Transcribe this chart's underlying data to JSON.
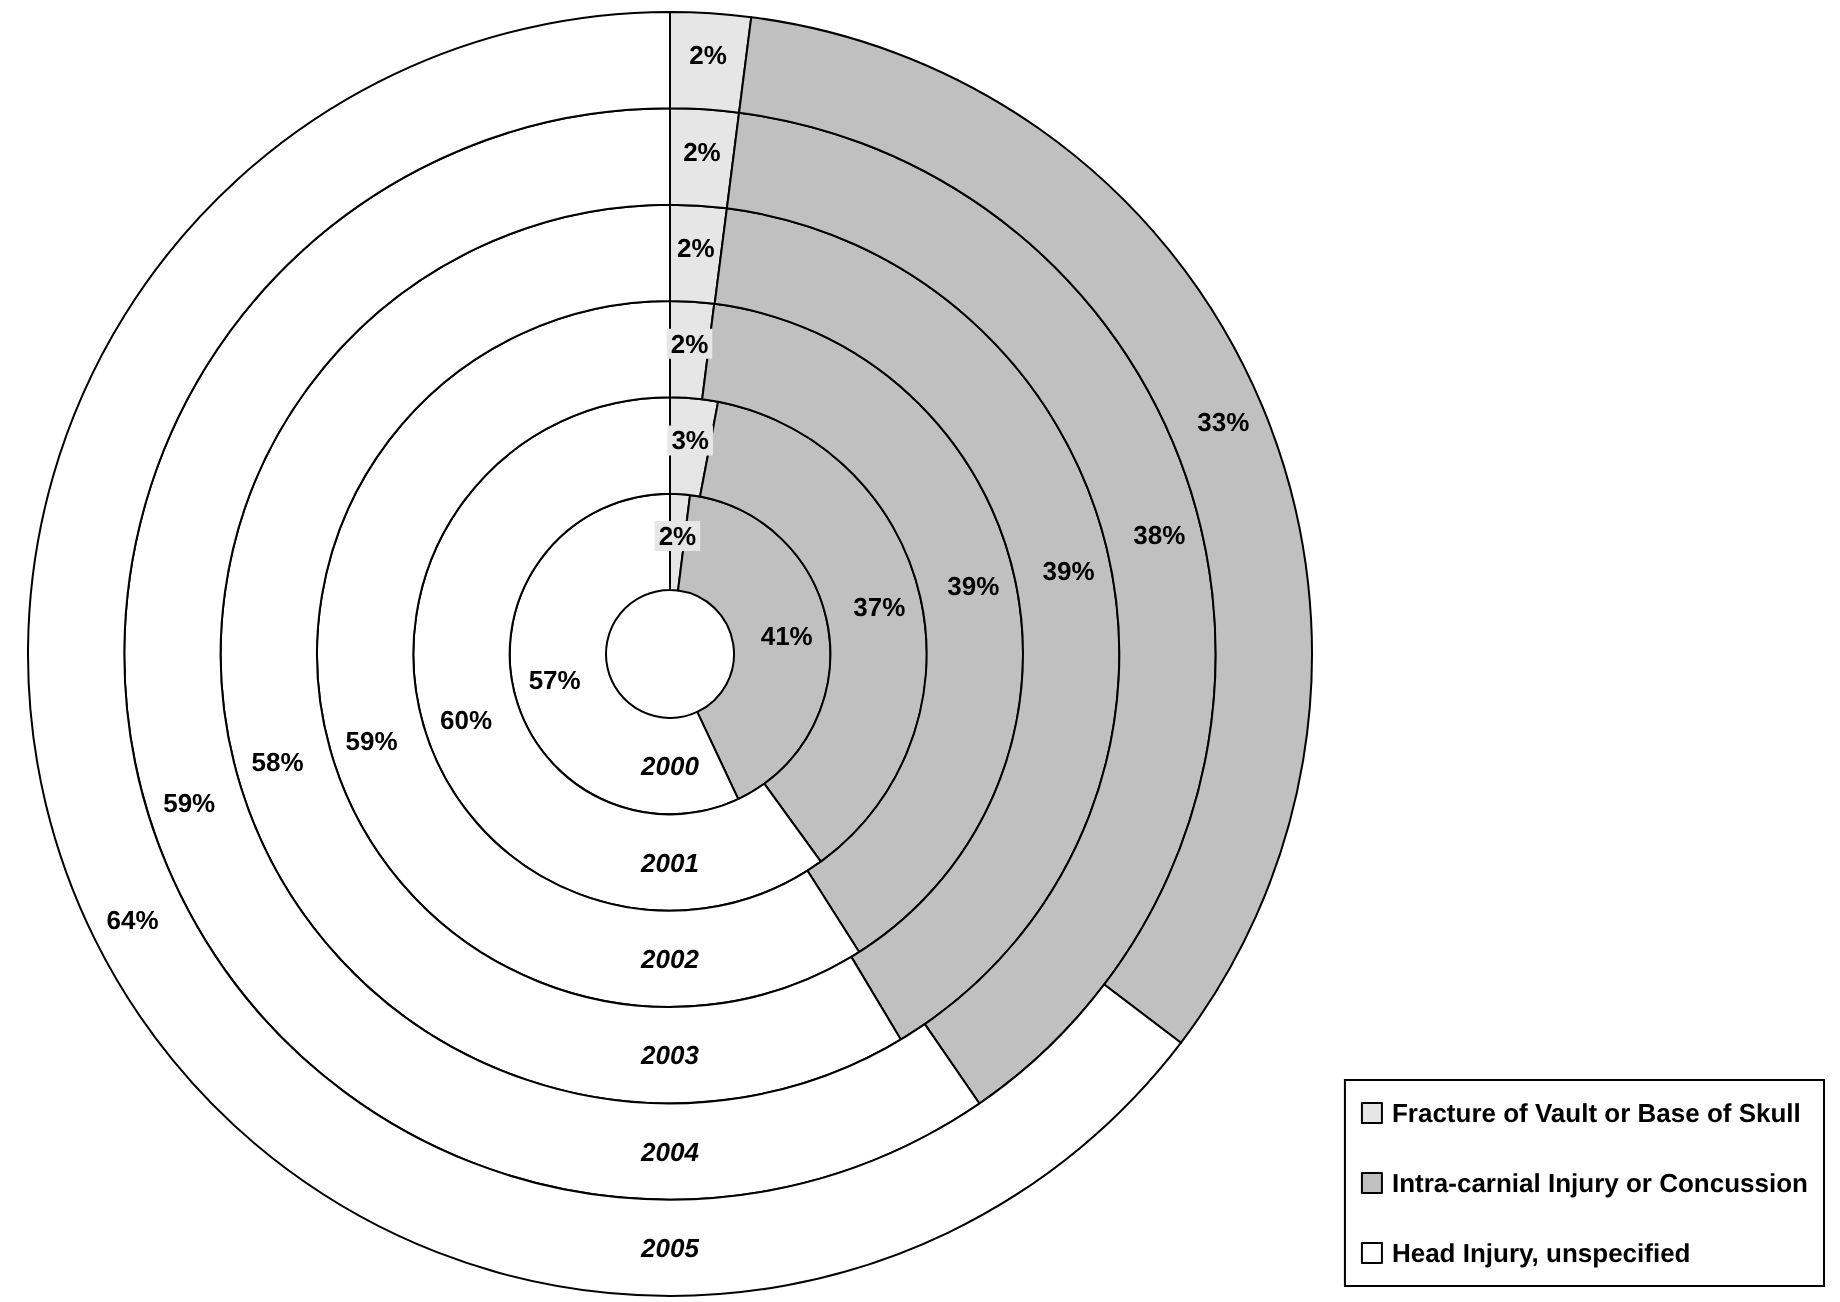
{
  "chart_data": {
    "type": "donut",
    "categories": [
      "Fracture of Vault or Base of Skull",
      "Intra-carnial Injury or Concussion",
      "Head Injury, unspecified"
    ],
    "colors": [
      "#e6e6e6",
      "#c0c0c0",
      "#ffffff"
    ],
    "series": [
      {
        "name": "2000",
        "values": [
          2,
          41,
          57
        ],
        "value_labels": [
          "2%",
          "41%",
          "57%"
        ]
      },
      {
        "name": "2001",
        "values": [
          3,
          37,
          60
        ],
        "value_labels": [
          "3%",
          "37%",
          "60%"
        ]
      },
      {
        "name": "2002",
        "values": [
          2,
          39,
          59
        ],
        "value_labels": [
          "2%",
          "39%",
          "59%"
        ]
      },
      {
        "name": "2003",
        "values": [
          2,
          39,
          58
        ],
        "value_labels": [
          "2%",
          "39%",
          "58%"
        ]
      },
      {
        "name": "2004",
        "values": [
          2,
          38,
          59
        ],
        "value_labels": [
          "2%",
          "38%",
          "59%"
        ]
      },
      {
        "name": "2005",
        "values": [
          2,
          33,
          64
        ],
        "value_labels": [
          "2%",
          "33%",
          "64%"
        ]
      }
    ],
    "legend": "bottom right"
  }
}
